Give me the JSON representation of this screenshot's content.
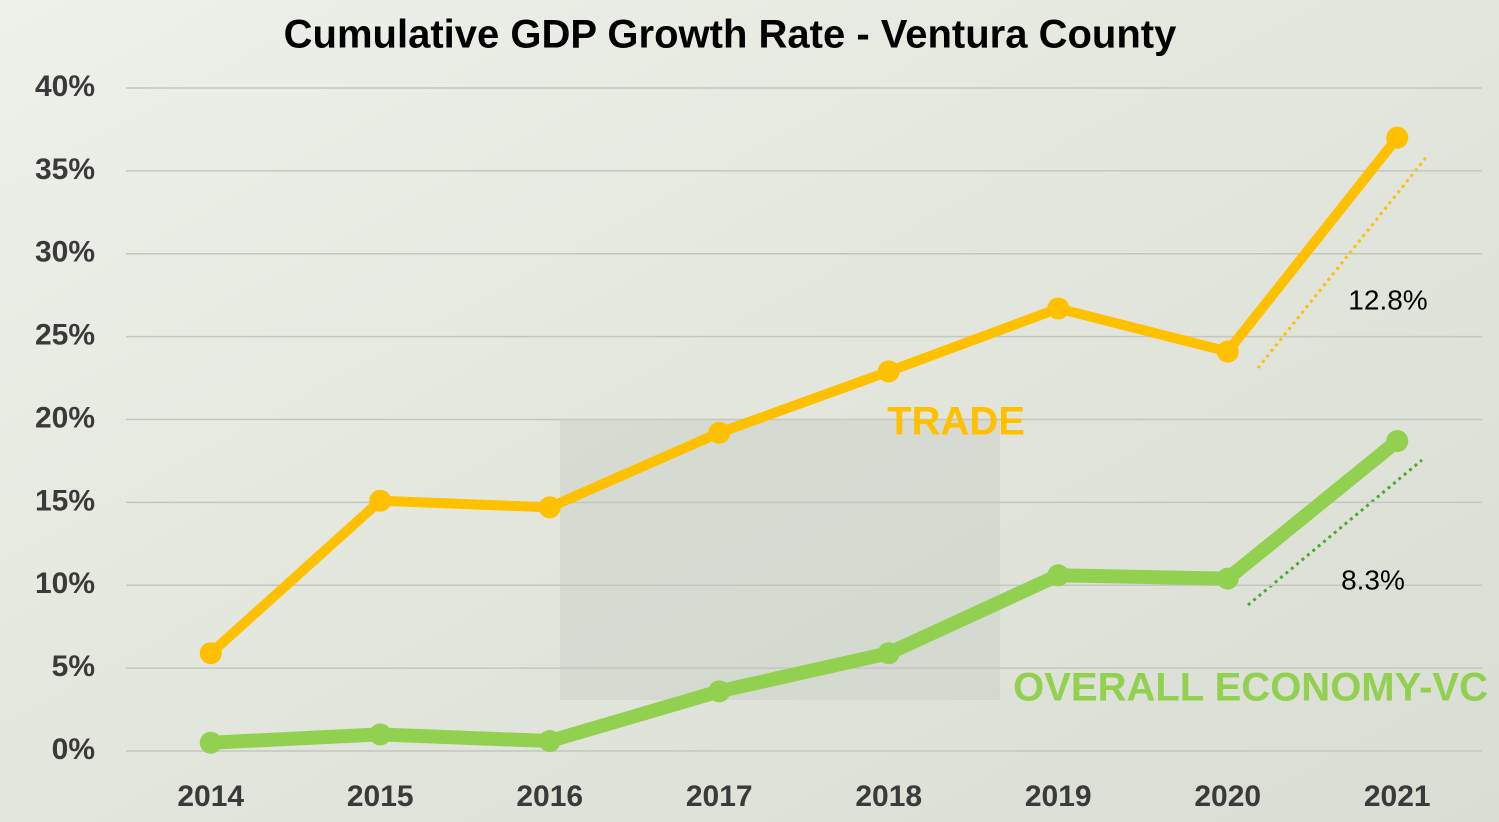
{
  "chart_data": {
    "type": "line",
    "title": "Cumulative GDP Growth Rate - Ventura County",
    "categories": [
      "2014",
      "2015",
      "2016",
      "2017",
      "2018",
      "2019",
      "2020",
      "2021"
    ],
    "series": [
      {
        "name": "TRADE",
        "color": "#FFC000",
        "values": [
          5.9,
          15.1,
          14.7,
          19.2,
          22.9,
          26.7,
          24.1,
          37.0
        ]
      },
      {
        "name": "OVERALL ECONOMY-VC",
        "color": "#92D050",
        "values": [
          0.5,
          1.0,
          0.6,
          3.6,
          5.9,
          10.6,
          10.4,
          18.7
        ]
      }
    ],
    "annotations": [
      "12.8%",
      "8.3%"
    ],
    "ylim": [
      0,
      40
    ],
    "yticks": [
      {
        "value": 0,
        "label": "0%"
      },
      {
        "value": 5,
        "label": "5%"
      },
      {
        "value": 10,
        "label": "10%"
      },
      {
        "value": 15,
        "label": "15%"
      },
      {
        "value": 20,
        "label": "20%"
      },
      {
        "value": 25,
        "label": "25%"
      },
      {
        "value": 30,
        "label": "30%"
      },
      {
        "value": 35,
        "label": "35%"
      },
      {
        "value": 40,
        "label": "40%"
      }
    ],
    "grid": true
  }
}
